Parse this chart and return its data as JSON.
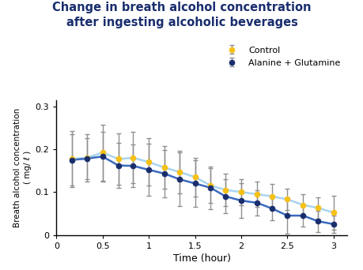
{
  "title_line1": "Change in breath alcohol concentration",
  "title_line2": "after ingesting alcoholic beverages",
  "xlabel": "Time (hour)",
  "ylabel": "Breath alcohol concentration  ( mg/ ℓ )",
  "xlim": [
    0,
    3.15
  ],
  "ylim": [
    0,
    0.315
  ],
  "xticks": [
    0,
    0.5,
    1,
    1.5,
    2,
    2.5,
    3
  ],
  "yticks": [
    0,
    0.1,
    0.2,
    0.3
  ],
  "control_x": [
    0.17,
    0.33,
    0.5,
    0.67,
    0.83,
    1.0,
    1.17,
    1.33,
    1.5,
    1.67,
    1.83,
    2.0,
    2.17,
    2.33,
    2.5,
    2.67,
    2.83,
    3.0
  ],
  "control_y": [
    0.177,
    0.18,
    0.192,
    0.177,
    0.18,
    0.17,
    0.157,
    0.147,
    0.135,
    0.115,
    0.105,
    0.1,
    0.095,
    0.09,
    0.083,
    0.07,
    0.063,
    0.052
  ],
  "control_yerr": [
    0.065,
    0.055,
    0.065,
    0.06,
    0.06,
    0.055,
    0.05,
    0.05,
    0.045,
    0.04,
    0.038,
    0.03,
    0.03,
    0.028,
    0.025,
    0.025,
    0.025,
    0.04
  ],
  "treatment_x": [
    0.17,
    0.33,
    0.5,
    0.67,
    0.83,
    1.0,
    1.17,
    1.33,
    1.5,
    1.67,
    1.83,
    2.0,
    2.17,
    2.33,
    2.5,
    2.67,
    2.83,
    3.0
  ],
  "treatment_y": [
    0.175,
    0.178,
    0.183,
    0.162,
    0.161,
    0.152,
    0.143,
    0.13,
    0.12,
    0.11,
    0.09,
    0.08,
    0.075,
    0.062,
    0.045,
    0.045,
    0.032,
    0.025
  ],
  "treatment_yerr": [
    0.06,
    0.048,
    0.058,
    0.052,
    0.05,
    0.06,
    0.055,
    0.062,
    0.055,
    0.05,
    0.04,
    0.04,
    0.03,
    0.028,
    0.042,
    0.025,
    0.025,
    0.02
  ],
  "control_color": "#f5c018",
  "control_line_color": "#a8d4f0",
  "treatment_color": "#1a2e6e",
  "treatment_line_color": "#3a6abf",
  "error_color": "#909090",
  "title_color": "#1a2e6e",
  "background_color": "#ffffff",
  "legend_control": "Control",
  "legend_treatment": "Alanine + Glutamine"
}
